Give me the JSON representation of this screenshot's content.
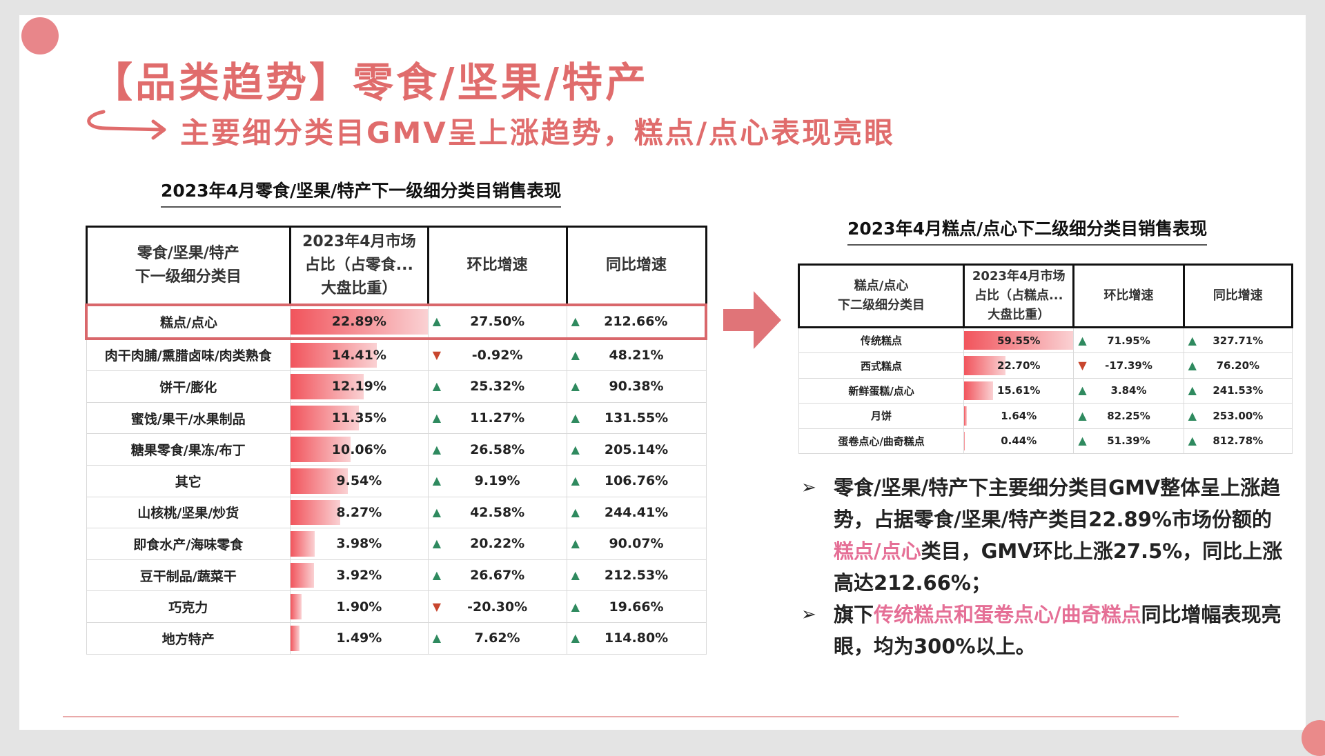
{
  "title": "【品类趋势】零食/坚果/特产",
  "subtitle": "主要细分类目GMV呈上涨趋势，糕点/点心表现亮眼",
  "table1": {
    "caption": "2023年4月零食/坚果/特产下一级细分类目销售表现",
    "headers": {
      "category_line1": "零食/坚果/特产",
      "category_line2": "下一级细分类目",
      "share_line1": "2023年4月市场",
      "share_line2": "占比（占零食...",
      "share_line3": "大盘比重）",
      "mom": "环比增速",
      "yoy": "同比增速"
    },
    "rows": [
      {
        "category": "糕点/点心",
        "share": "22.89%",
        "share_value": 22.89,
        "mom": "27.50%",
        "mom_dir": "up",
        "yoy": "212.66%",
        "yoy_dir": "up"
      },
      {
        "category": "肉干肉脯/熏腊卤味/肉类熟食",
        "share": "14.41%",
        "share_value": 14.41,
        "mom": "-0.92%",
        "mom_dir": "down",
        "yoy": "48.21%",
        "yoy_dir": "up"
      },
      {
        "category": "饼干/膨化",
        "share": "12.19%",
        "share_value": 12.19,
        "mom": "25.32%",
        "mom_dir": "up",
        "yoy": "90.38%",
        "yoy_dir": "up"
      },
      {
        "category": "蜜饯/果干/水果制品",
        "share": "11.35%",
        "share_value": 11.35,
        "mom": "11.27%",
        "mom_dir": "up",
        "yoy": "131.55%",
        "yoy_dir": "up"
      },
      {
        "category": "糖果零食/果冻/布丁",
        "share": "10.06%",
        "share_value": 10.06,
        "mom": "26.58%",
        "mom_dir": "up",
        "yoy": "205.14%",
        "yoy_dir": "up"
      },
      {
        "category": "其它",
        "share": "9.54%",
        "share_value": 9.54,
        "mom": "9.19%",
        "mom_dir": "up",
        "yoy": "106.76%",
        "yoy_dir": "up"
      },
      {
        "category": "山核桃/坚果/炒货",
        "share": "8.27%",
        "share_value": 8.27,
        "mom": "42.58%",
        "mom_dir": "up",
        "yoy": "244.41%",
        "yoy_dir": "up"
      },
      {
        "category": "即食水产/海味零食",
        "share": "3.98%",
        "share_value": 3.98,
        "mom": "20.22%",
        "mom_dir": "up",
        "yoy": "90.07%",
        "yoy_dir": "up"
      },
      {
        "category": "豆干制品/蔬菜干",
        "share": "3.92%",
        "share_value": 3.92,
        "mom": "26.67%",
        "mom_dir": "up",
        "yoy": "212.53%",
        "yoy_dir": "up"
      },
      {
        "category": "巧克力",
        "share": "1.90%",
        "share_value": 1.9,
        "mom": "-20.30%",
        "mom_dir": "down",
        "yoy": "19.66%",
        "yoy_dir": "up"
      },
      {
        "category": "地方特产",
        "share": "1.49%",
        "share_value": 1.49,
        "mom": "7.62%",
        "mom_dir": "up",
        "yoy": "114.80%",
        "yoy_dir": "up"
      }
    ]
  },
  "table2": {
    "caption": "2023年4月糕点/点心下二级细分类目销售表现",
    "headers": {
      "category_line1": "糕点/点心",
      "category_line2": "下二级细分类目",
      "share_line1": "2023年4月市场",
      "share_line2": "占比（占糕点...",
      "share_line3": "大盘比重）",
      "mom": "环比增速",
      "yoy": "同比增速"
    },
    "rows": [
      {
        "category": "传统糕点",
        "share": "59.55%",
        "share_value": 59.55,
        "mom": "71.95%",
        "mom_dir": "up",
        "yoy": "327.71%",
        "yoy_dir": "up"
      },
      {
        "category": "西式糕点",
        "share": "22.70%",
        "share_value": 22.7,
        "mom": "-17.39%",
        "mom_dir": "down",
        "yoy": "76.20%",
        "yoy_dir": "up"
      },
      {
        "category": "新鲜蛋糕/点心",
        "share": "15.61%",
        "share_value": 15.61,
        "mom": "3.84%",
        "mom_dir": "up",
        "yoy": "241.53%",
        "yoy_dir": "up"
      },
      {
        "category": "月饼",
        "share": "1.64%",
        "share_value": 1.64,
        "mom": "82.25%",
        "mom_dir": "up",
        "yoy": "253.00%",
        "yoy_dir": "up"
      },
      {
        "category": "蛋卷点心/曲奇糕点",
        "share": "0.44%",
        "share_value": 0.44,
        "mom": "51.39%",
        "mom_dir": "up",
        "yoy": "812.78%",
        "yoy_dir": "up"
      }
    ]
  },
  "bullets": {
    "marker": "➢",
    "b1_part1": "零食/坚果/特产下主要细分类目GMV整体呈上涨趋势，占据零食/坚果/特产类目22.89%市场份额的",
    "b1_highlight": "糕点/点心",
    "b1_part2": "类目，GMV环比上涨27.5%，同比上涨高达212.66%；",
    "b2_part1": "旗下",
    "b2_highlight": "传统糕点和蛋卷点心/曲奇糕点",
    "b2_part2": "同比增幅表现亮眼，均为300%以上。"
  },
  "icons": {
    "up": "arrow-up-icon",
    "down": "arrow-down-icon",
    "big": "right-arrow-icon"
  },
  "colors": {
    "accent": "#e06c6c",
    "bar": "#f1545c",
    "up": "#2f8a5f",
    "down": "#c8462e",
    "highlight_text": "#e56f96"
  }
}
